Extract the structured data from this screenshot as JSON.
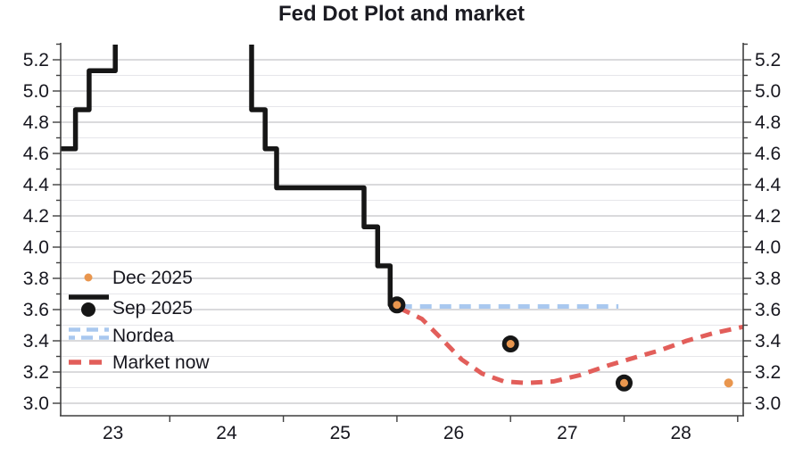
{
  "title": "Fed Dot Plot and market",
  "colors": {
    "black": "#161616",
    "orange": "#e9964e",
    "blue": "#a9c8ef",
    "red": "#e25e5a",
    "grid_major": "#cdcdd1",
    "grid_minor": "#e6e6ea",
    "axis": "#3f3f3f",
    "text": "#17171f"
  },
  "legend": [
    {
      "label": "Dec 2025",
      "type": "dot",
      "color_key": "orange"
    },
    {
      "label": "Sep 2025",
      "type": "line-dot",
      "color_key": "black"
    },
    {
      "label": "Nordea",
      "type": "double-dash",
      "color_key": "blue"
    },
    {
      "label": "Market now",
      "type": "dash",
      "color_key": "red"
    }
  ],
  "chart_data": {
    "type": "line",
    "title": "Fed Dot Plot and market",
    "xlabel": "",
    "ylabel": "",
    "x_tick_labels": [
      "23",
      "24",
      "25",
      "26",
      "27",
      "28"
    ],
    "x_label_positions": [
      23.5,
      24.5,
      25.5,
      26.5,
      27.5,
      28.5
    ],
    "x_boundary_ticks": [
      24,
      25,
      26,
      27,
      28,
      29
    ],
    "xlim": [
      23.0,
      29.05
    ],
    "ylim": [
      2.9,
      5.32
    ],
    "y_tick_labels": [
      "3.0",
      "3.2",
      "3.4",
      "3.6",
      "3.8",
      "4.0",
      "4.2",
      "4.4",
      "4.6",
      "4.8",
      "5.0",
      "5.2"
    ],
    "y_minor_step": 0.1,
    "grid": "horizontal every 0.1, labels on both sides",
    "legend_position": "inside lower-left",
    "series": [
      {
        "name": "Sep 2025",
        "render": "step-line",
        "color_key": "black",
        "points": [
          [
            23.0,
            4.63
          ],
          [
            23.17,
            4.63
          ],
          [
            23.17,
            4.88
          ],
          [
            23.29,
            4.88
          ],
          [
            23.29,
            5.13
          ],
          [
            23.52,
            5.13
          ],
          [
            23.52,
            5.38
          ],
          [
            24.72,
            5.38
          ],
          [
            24.72,
            4.88
          ],
          [
            24.84,
            4.88
          ],
          [
            24.84,
            4.63
          ],
          [
            24.94,
            4.63
          ],
          [
            24.94,
            4.38
          ],
          [
            25.71,
            4.38
          ],
          [
            25.71,
            4.13
          ],
          [
            25.83,
            4.13
          ],
          [
            25.83,
            3.88
          ],
          [
            25.94,
            3.88
          ],
          [
            25.94,
            3.63
          ],
          [
            26.0,
            3.63
          ]
        ]
      },
      {
        "name": "Sep 2025 year-end dots",
        "render": "ringed-dots",
        "color_key": "black",
        "fill_key": "orange",
        "points": [
          [
            26.0,
            3.63
          ],
          [
            27.0,
            3.38
          ],
          [
            28.0,
            3.13
          ]
        ]
      },
      {
        "name": "Dec 2025",
        "render": "dots",
        "color_key": "orange",
        "points": [
          [
            28.92,
            3.13
          ]
        ]
      },
      {
        "name": "Nordea",
        "render": "dash-line",
        "color_key": "blue",
        "points": [
          [
            26.03,
            3.62
          ],
          [
            27.95,
            3.62
          ]
        ]
      },
      {
        "name": "Market now",
        "render": "dash-line",
        "color_key": "red",
        "points": [
          [
            26.02,
            3.61
          ],
          [
            26.22,
            3.54
          ],
          [
            26.37,
            3.43
          ],
          [
            26.57,
            3.28
          ],
          [
            26.75,
            3.19
          ],
          [
            26.94,
            3.14
          ],
          [
            27.14,
            3.13
          ],
          [
            27.38,
            3.14
          ],
          [
            27.61,
            3.18
          ],
          [
            27.85,
            3.24
          ],
          [
            28.08,
            3.29
          ],
          [
            28.32,
            3.34
          ],
          [
            28.55,
            3.4
          ],
          [
            28.79,
            3.45
          ],
          [
            29.05,
            3.49
          ]
        ]
      }
    ]
  }
}
